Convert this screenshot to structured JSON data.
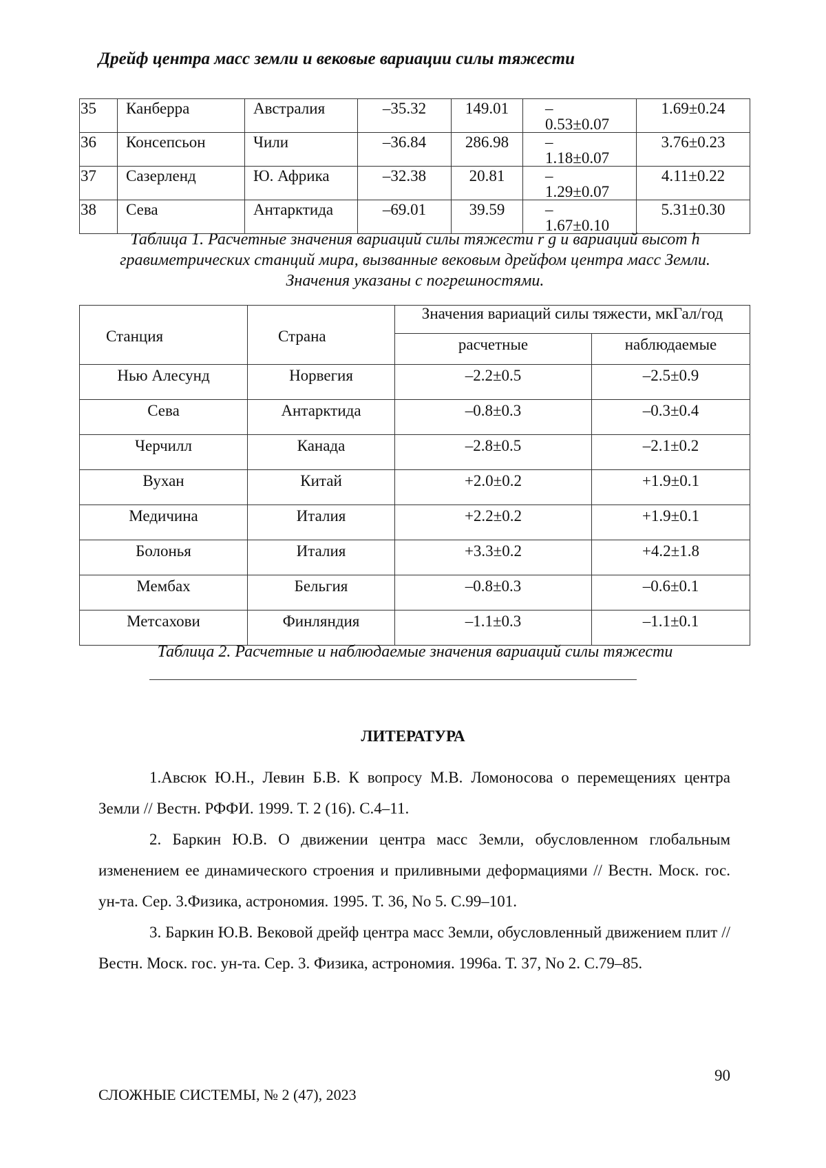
{
  "header": {
    "title": "Дрейф центра масс земли и вековые вариации силы тяжести"
  },
  "table1": {
    "rows": [
      [
        "35",
        "Канберра",
        "Австралия",
        "–35.32",
        "149.01",
        [
          "–",
          "0.53±0.07"
        ],
        "1.69±0.24"
      ],
      [
        "36",
        "Консепсьон",
        "Чили",
        "–36.84",
        "286.98",
        [
          "–",
          "1.18±0.07"
        ],
        "3.76±0.23"
      ],
      [
        "37",
        "Сазерленд",
        "Ю. Африка",
        "–32.38",
        "20.81",
        [
          "–",
          "1.29±0.07"
        ],
        "4.11±0.22"
      ],
      [
        "38",
        "Сева",
        "Антарктида",
        "–69.01",
        "39.59",
        [
          "–",
          "1.67±0.10"
        ],
        "5.31±0.30"
      ]
    ],
    "caption": "Таблица 1. Расчетные значения вариаций силы тяжести r g и вариаций высот h гравиметрических станций мира, вызванные вековым дрейфом центра масс Земли.  Значения указаны с погрешностями."
  },
  "table2": {
    "header": [
      "Станция",
      "Страна",
      "Значения вариаций силы тяжести, мкГал/год",
      "расчетные",
      "наблюдаемые"
    ],
    "rows": [
      [
        "Нью Алесунд",
        "Норвегия",
        "–2.2±0.5",
        "–2.5±0.9"
      ],
      [
        "Сева",
        "Антарктида",
        "–0.8±0.3",
        "–0.3±0.4"
      ],
      [
        "Черчилл",
        "Канада",
        "–2.8±0.5",
        "–2.1±0.2"
      ],
      [
        "Вухан",
        "Китай",
        "+2.0±0.2",
        "+1.9±0.1"
      ],
      [
        "Медичина",
        "Италия",
        "+2.2±0.2",
        "+1.9±0.1"
      ],
      [
        "Болонья",
        "Италия",
        "+3.3±0.2",
        "+4.2±1.8"
      ],
      [
        "Мембах",
        "Бельгия",
        "–0.8±0.3",
        "–0.6±0.1"
      ],
      [
        "Метсахови",
        "Финляндия",
        "–1.1±0.3",
        "–1.1±0.1"
      ]
    ],
    "caption": "Таблица 2. Расчетные и наблюдаемые значения вариаций силы тяжести"
  },
  "references": {
    "title": "ЛИТЕРАТУРА",
    "items": [
      "1.Авсюк Ю.Н., Левин Б.В. К вопросу М.В. Ломоносова о перемещениях центра Земли // Вестн. РФФИ. 1999. Т. 2 (16). С.4–11.",
      "2. Баркин Ю.В. О движении центра масс Земли, обусловленном глобальным изменением ее динамического строения и приливными деформациями // Вестн. Моск. гос. ун-та. Сер. 3.Физика, астрономия. 1995. Т. 36, No 5. С.99–101.",
      "3. Баркин Ю.В. Вековой дрейф центра масс Земли, обусловленный движением плит // Вестн. Моск. гос. ун-та. Сер. 3. Физика, астрономия. 1996a. Т. 37, No 2. С.79–85."
    ]
  },
  "footer": {
    "page_number": "90",
    "journal": "СЛОЖНЫЕ СИСТЕМЫ,  № 2 (47), 2023"
  }
}
